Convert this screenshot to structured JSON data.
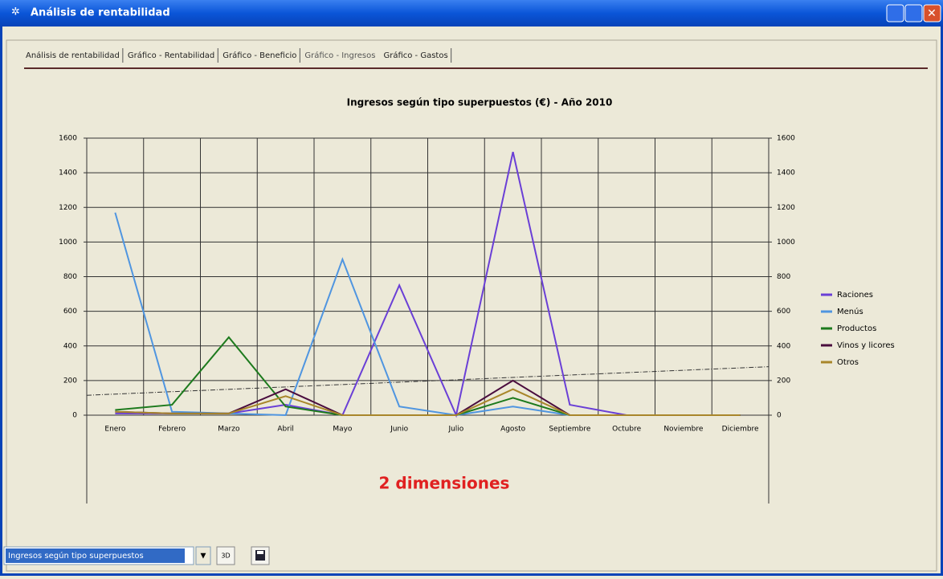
{
  "window": {
    "title": "Análisis de rentabilidad"
  },
  "tabs": [
    "Análisis de rentabilidad",
    "Gráfico - Rentabilidad",
    "Gráfico - Beneficio",
    "Gráfico - Ingresos",
    "Gráfico - Gastos"
  ],
  "active_tab": 3,
  "chart_data": {
    "type": "line",
    "title": "Ingresos según tipo superpuestos (€) - Año 2010",
    "categories": [
      "Enero",
      "Febrero",
      "Marzo",
      "Abril",
      "Mayo",
      "Junio",
      "Julio",
      "Agosto",
      "Septiembre",
      "Octubre",
      "Noviembre",
      "Diciembre"
    ],
    "series": [
      {
        "name": "Raciones",
        "color": "#6a3fd6",
        "values": [
          10,
          10,
          10,
          60,
          0,
          750,
          0,
          1520,
          60,
          0,
          0,
          0
        ]
      },
      {
        "name": "Menús",
        "color": "#4f95e0",
        "values": [
          1170,
          20,
          10,
          0,
          900,
          50,
          0,
          50,
          0,
          0,
          0,
          0
        ]
      },
      {
        "name": "Productos",
        "color": "#1d7a1d",
        "values": [
          30,
          60,
          450,
          50,
          0,
          0,
          0,
          100,
          0,
          0,
          0,
          0
        ]
      },
      {
        "name": "Vinos y licores",
        "color": "#4a0d3e",
        "values": [
          20,
          10,
          10,
          150,
          0,
          0,
          0,
          200,
          0,
          0,
          0,
          0
        ]
      },
      {
        "name": "Otros",
        "color": "#a8862a",
        "values": [
          20,
          10,
          10,
          110,
          0,
          0,
          0,
          150,
          0,
          0,
          0,
          0
        ]
      }
    ],
    "trend": {
      "values": [
        115,
        280
      ]
    },
    "ylim": [
      0,
      1600
    ],
    "yticks": [
      0,
      200,
      400,
      600,
      800,
      1000,
      1200,
      1400,
      1600
    ],
    "y2lim": [
      0,
      1600
    ],
    "y2ticks": [
      0,
      200,
      400,
      600,
      800,
      1000,
      1200,
      1400,
      1600
    ],
    "grid": true,
    "legend": "right",
    "annotation": "2 dimensiones"
  },
  "controls": {
    "combo": "Ingresos según tipo superpuestos",
    "button_3d": "3D"
  }
}
